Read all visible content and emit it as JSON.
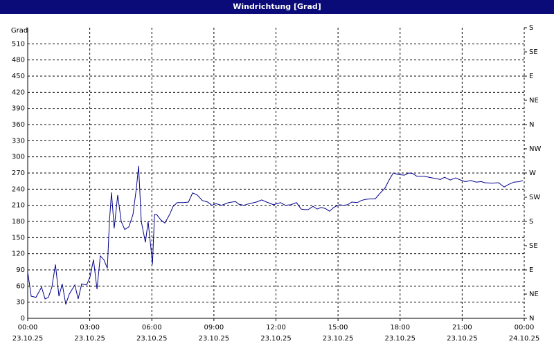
{
  "chart_data": {
    "type": "line",
    "title": "Windrichtung [Grad]",
    "y_label": "Grad",
    "color": "#00008b",
    "grid": true,
    "xlim": [
      0,
      24
    ],
    "xticks": [
      {
        "value": 0,
        "label": [
          "00:00",
          "23.10.25"
        ]
      },
      {
        "value": 3,
        "label": [
          "03:00",
          "23.10.25"
        ]
      },
      {
        "value": 6,
        "label": [
          "06:00",
          "23.10.25"
        ]
      },
      {
        "value": 9,
        "label": [
          "09:00",
          "23.10.25"
        ]
      },
      {
        "value": 12,
        "label": [
          "12:00",
          "23.10.25"
        ]
      },
      {
        "value": 15,
        "label": [
          "15:00",
          "23.10.25"
        ]
      },
      {
        "value": 18,
        "label": [
          "18:00",
          "23.10.25"
        ]
      },
      {
        "value": 21,
        "label": [
          "21:00",
          "23.10.25"
        ]
      },
      {
        "value": 24,
        "label": [
          "00:00",
          "24.10.25"
        ]
      }
    ],
    "ylim": [
      0,
      540
    ],
    "yticks": [
      0,
      30,
      60,
      90,
      120,
      150,
      180,
      210,
      240,
      270,
      300,
      330,
      360,
      390,
      420,
      450,
      480,
      510
    ],
    "y2lim": [
      0,
      540
    ],
    "y2ticks": [
      {
        "value": 0,
        "label": "N"
      },
      {
        "value": 45,
        "label": "NE"
      },
      {
        "value": 90,
        "label": "E"
      },
      {
        "value": 135,
        "label": "SE"
      },
      {
        "value": 180,
        "label": "S"
      },
      {
        "value": 225,
        "label": "SW"
      },
      {
        "value": 270,
        "label": "W"
      },
      {
        "value": 315,
        "label": "NW"
      },
      {
        "value": 360,
        "label": "N"
      },
      {
        "value": 405,
        "label": "NE"
      },
      {
        "value": 450,
        "label": "E"
      },
      {
        "value": 495,
        "label": "SE"
      },
      {
        "value": 540,
        "label": "S"
      }
    ],
    "x": [
      0,
      0.17,
      0.4,
      0.67,
      0.84,
      1.0,
      1.17,
      1.34,
      1.51,
      1.67,
      1.84,
      2.01,
      2.28,
      2.44,
      2.61,
      2.85,
      3.01,
      3.18,
      3.35,
      3.51,
      3.68,
      3.85,
      3.95,
      4.05,
      4.18,
      4.35,
      4.52,
      4.69,
      4.89,
      5.09,
      5.26,
      5.36,
      5.49,
      5.69,
      5.82,
      5.96,
      6.03,
      6.13,
      6.23,
      6.43,
      6.63,
      6.86,
      7.03,
      7.23,
      7.53,
      7.77,
      7.97,
      8.2,
      8.44,
      8.7,
      8.9,
      9.1,
      9.37,
      9.71,
      10.04,
      10.21,
      10.44,
      10.71,
      11.05,
      11.31,
      11.55,
      11.88,
      12.22,
      12.45,
      12.72,
      12.99,
      13.22,
      13.39,
      13.56,
      13.79,
      13.99,
      14.19,
      14.39,
      14.59,
      14.79,
      15.06,
      15.26,
      15.46,
      15.67,
      15.93,
      16.13,
      16.33,
      16.57,
      16.8,
      17.0,
      17.27,
      17.47,
      17.67,
      17.94,
      18.21,
      18.41,
      18.61,
      18.81,
      19.15,
      19.41,
      19.68,
      19.95,
      20.15,
      20.42,
      20.69,
      20.92,
      21.15,
      21.42,
      21.69,
      21.92,
      22.09,
      22.43,
      22.76,
      23.03,
      23.26,
      23.5,
      23.77,
      23.93
    ],
    "values": [
      86,
      41,
      39,
      58,
      36,
      39,
      58,
      100,
      41,
      64,
      26,
      45,
      62,
      36,
      64,
      62,
      77,
      109,
      54,
      116,
      109,
      93,
      180,
      234,
      167,
      229,
      180,
      165,
      170,
      193,
      244,
      283,
      180,
      141,
      180,
      129,
      100,
      193,
      193,
      183,
      177,
      193,
      208,
      215,
      215,
      216,
      233,
      229,
      219,
      216,
      210,
      213,
      210,
      215,
      217,
      212,
      210,
      213,
      216,
      220,
      216,
      211,
      215,
      210,
      211,
      215,
      203,
      202,
      202,
      208,
      203,
      206,
      204,
      199,
      206,
      211,
      210,
      211,
      216,
      215,
      219,
      221,
      222,
      222,
      231,
      242,
      257,
      270,
      267,
      266,
      270,
      269,
      264,
      264,
      262,
      260,
      258,
      262,
      257,
      261,
      257,
      254,
      256,
      253,
      254,
      252,
      251,
      252,
      244,
      249,
      253,
      254,
      256
    ]
  }
}
